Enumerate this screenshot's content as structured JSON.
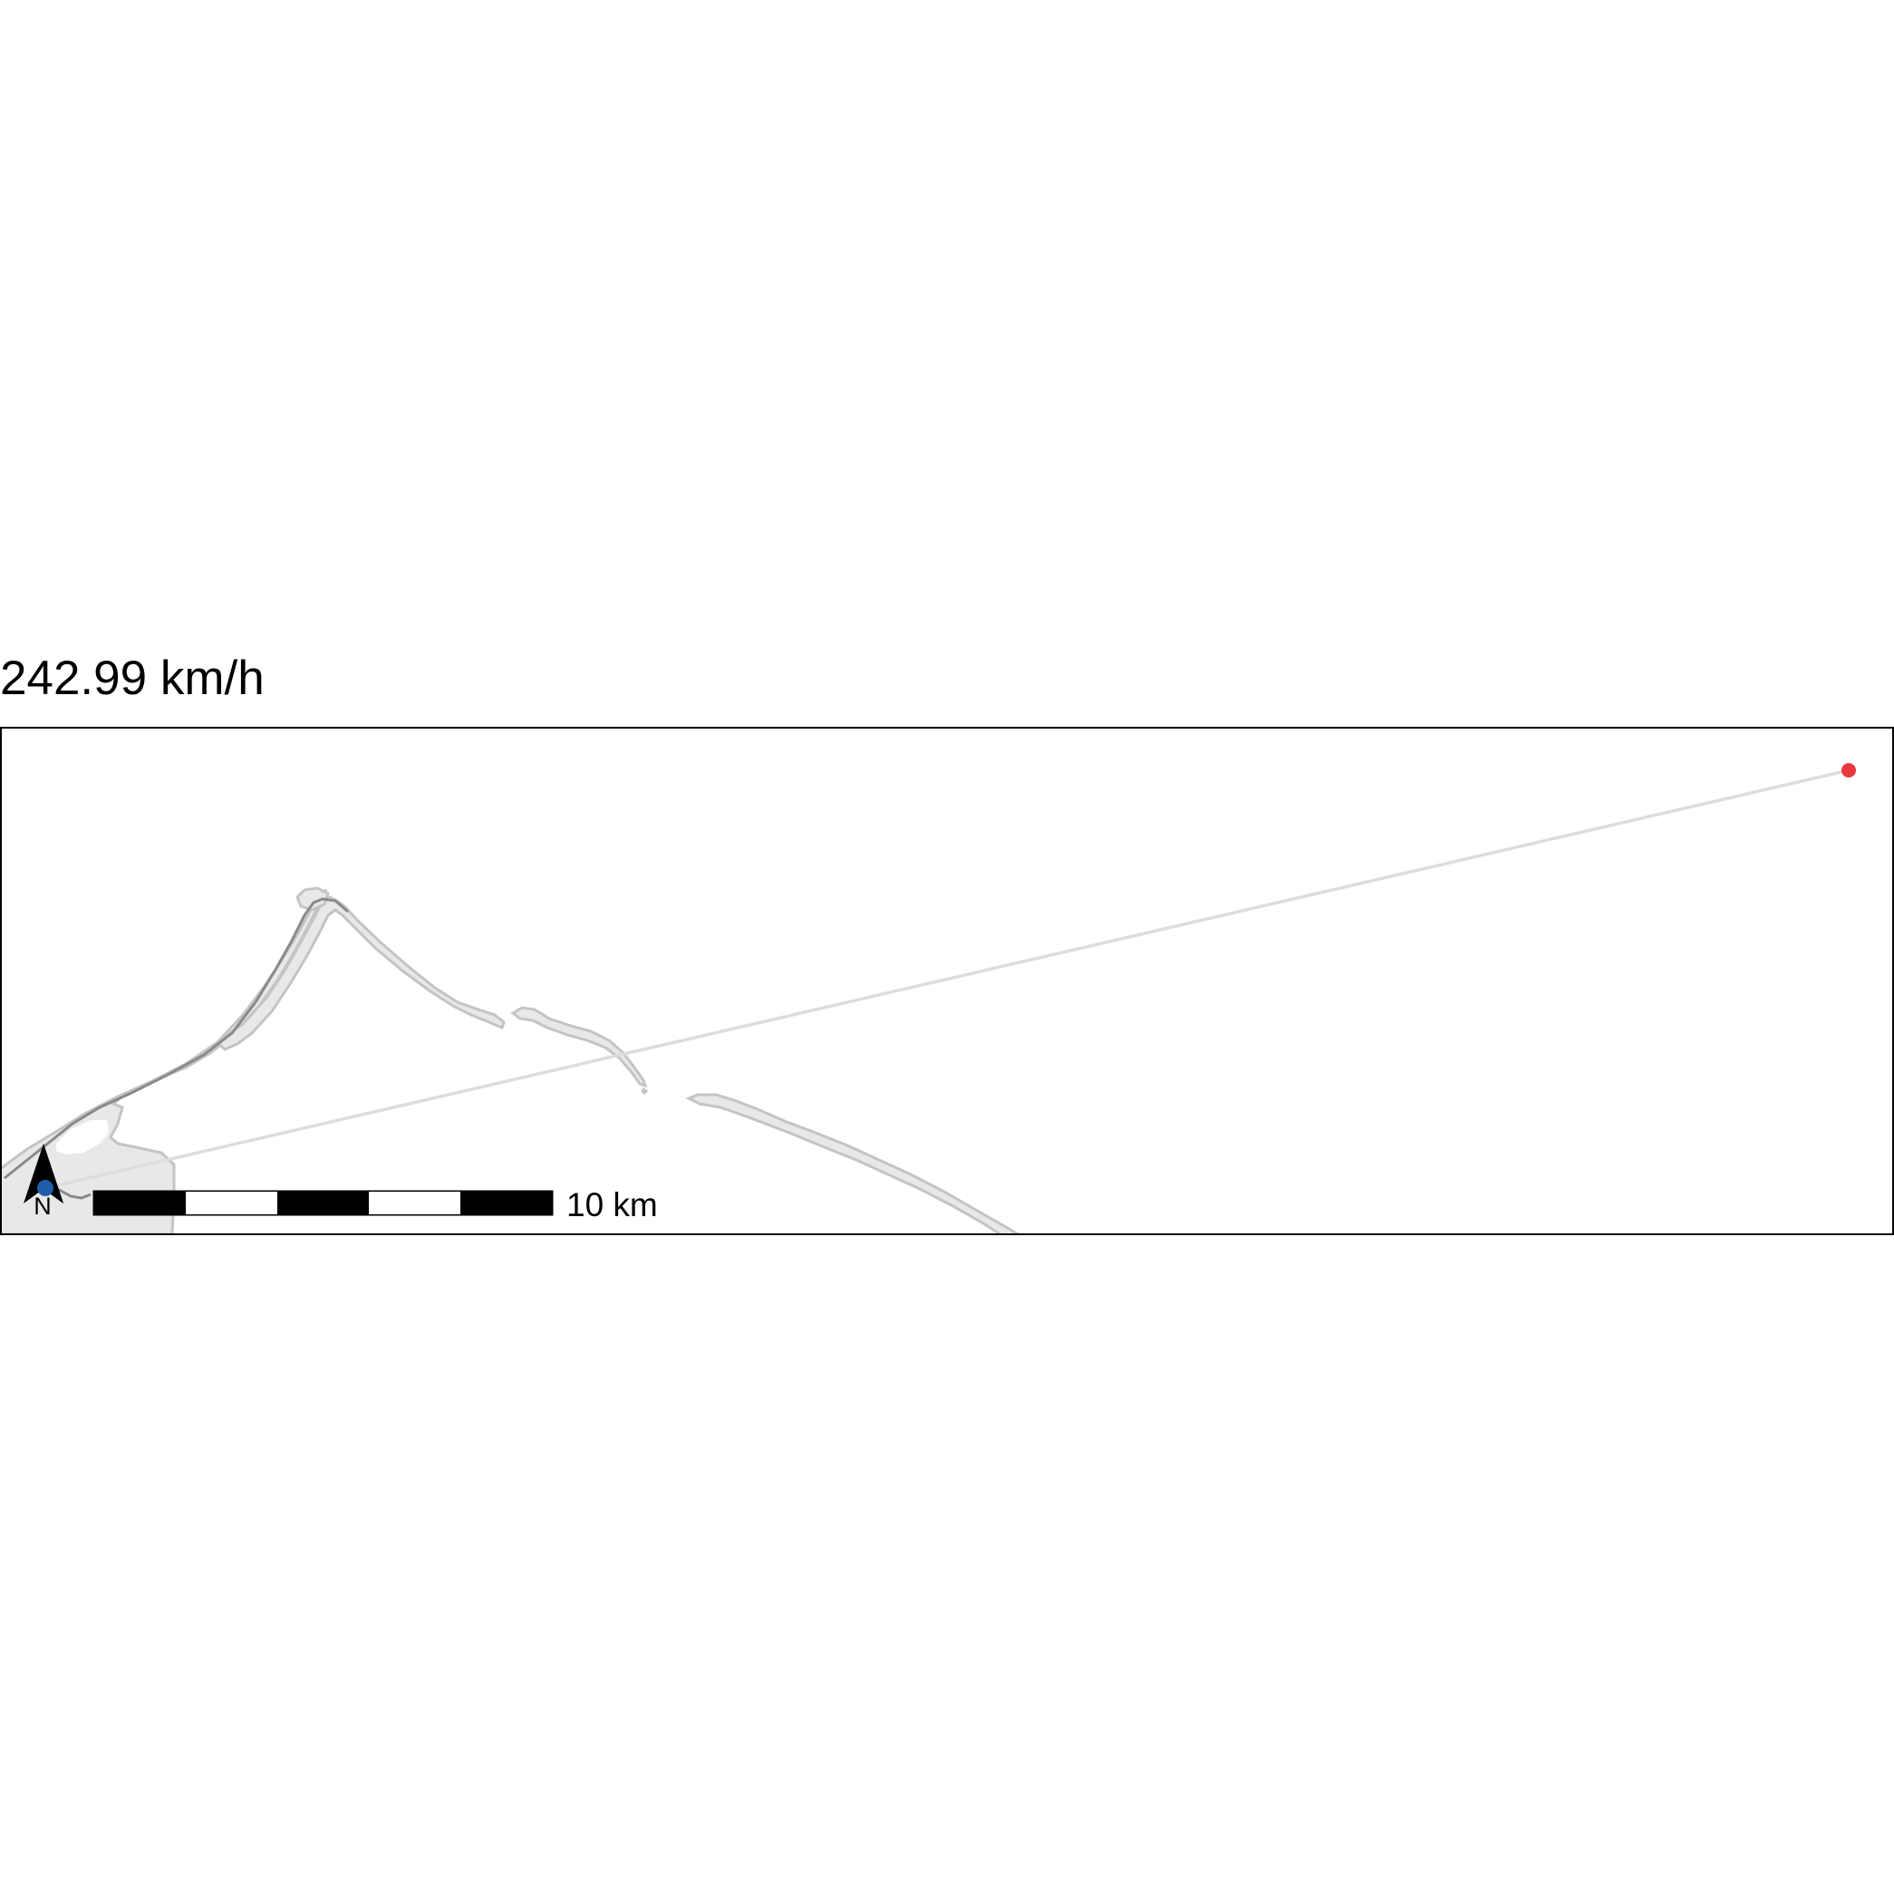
{
  "title": "242.99 km/h",
  "scale_bar": {
    "label": "10 km",
    "segments": 5
  },
  "north_arrow": {
    "label": "N"
  },
  "track": {
    "start_color": "#1f5fa8",
    "end_color": "#e8393e",
    "line_color": "#dddddd"
  },
  "land": {
    "fill": "#e8e8e8",
    "stroke": "#c4c4c4",
    "road": "#8a8a8a"
  }
}
